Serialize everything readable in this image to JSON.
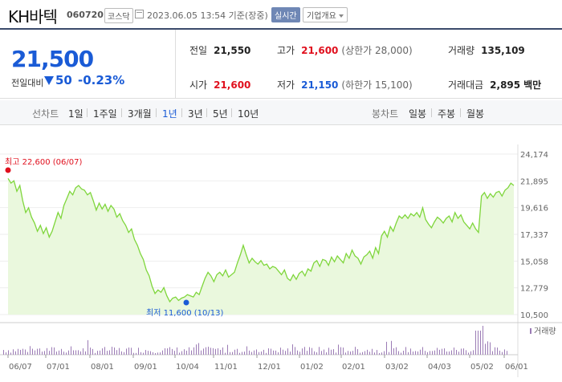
{
  "header": {
    "name": "KH바텍",
    "code": "060720",
    "market": "코스닥",
    "datetime": "2023.06.05 13:54 기준(장중)",
    "realtime": "실시간",
    "company_info": "기업개요"
  },
  "price": {
    "current": "21,500",
    "diff_label": "전일대비",
    "diff": "50",
    "diff_pct": "-0.23%"
  },
  "stats": {
    "prev_label": "전일",
    "prev": "21,550",
    "high_label": "고가",
    "high": "21,600",
    "upper_limit": "(상한가 28,000)",
    "volume_label": "거래량",
    "volume": "135,109",
    "open_label": "시가",
    "open": "21,600",
    "low_label": "저가",
    "low": "21,150",
    "lower_limit": "(하한가 15,100)",
    "amount_label": "거래대금",
    "amount": "2,895",
    "amount_unit": "백만"
  },
  "periodbar": {
    "line_label": "선차트",
    "periods": [
      "1일",
      "1주일",
      "3개월",
      "1년",
      "3년",
      "5년",
      "10년"
    ],
    "active": "1년",
    "candle_label": "봉차트",
    "candles": [
      "일봉",
      "주봉",
      "월봉"
    ]
  },
  "colors": {
    "up": "#e0101e",
    "down": "#1a5bd6",
    "line": "#7fd63c",
    "fill": "#eaf8dd",
    "volume": "#9b7bb5"
  },
  "chart_data": {
    "type": "area",
    "y_ticks": [
      "24,174",
      "21,895",
      "19,616",
      "17,337",
      "15,058",
      "12,779",
      "10,500"
    ],
    "ylim": [
      10500,
      24174
    ],
    "x_ticks": [
      "06/07",
      "07/01",
      "08/01",
      "09/01",
      "10/04",
      "11/01",
      "12/01",
      "01/02",
      "02/01",
      "03/02",
      "04/03",
      "05/02",
      "06/01"
    ],
    "high_annotation": "최고 22,600 (06/07)",
    "low_annotation": "최저 11,600 (10/13)",
    "volume_label": "거래량",
    "values": [
      22100,
      21700,
      21900,
      21000,
      21500,
      20200,
      19200,
      19600,
      18800,
      18300,
      17600,
      18100,
      17400,
      17900,
      17100,
      17600,
      18400,
      19200,
      18700,
      19800,
      20400,
      21000,
      20700,
      21300,
      21500,
      21200,
      21100,
      20700,
      20900,
      20200,
      19400,
      20000,
      19500,
      19900,
      19300,
      19800,
      19500,
      18800,
      19100,
      18500,
      18100,
      17500,
      17800,
      16900,
      16400,
      15700,
      15200,
      14300,
      13800,
      12900,
      12300,
      12600,
      12400,
      12800,
      12100,
      11600,
      11900,
      12000,
      11700,
      11900,
      12000,
      12200,
      12100,
      12000,
      12400,
      12200,
      12900,
      13600,
      14100,
      13800,
      13300,
      13900,
      14100,
      13800,
      14300,
      13700,
      13900,
      14100,
      14900,
      15600,
      16400,
      15600,
      14900,
      15300,
      15000,
      14800,
      15100,
      14700,
      14800,
      14400,
      14600,
      14500,
      14200,
      13900,
      14300,
      13600,
      13400,
      13900,
      13500,
      14000,
      14200,
      13800,
      14400,
      14200,
      14900,
      15100,
      14600,
      15200,
      15100,
      14700,
      15400,
      15000,
      15500,
      15200,
      14900,
      15700,
      15300,
      16000,
      15500,
      15300,
      14800,
      15400,
      15600,
      15900,
      15300,
      16200,
      15700,
      17200,
      17600,
      17100,
      18000,
      17600,
      18300,
      18900,
      18700,
      19000,
      18700,
      19100,
      18900,
      19200,
      18800,
      19600,
      18600,
      18200,
      17900,
      18400,
      18800,
      18600,
      18300,
      18700,
      18900,
      18400,
      19200,
      18700,
      19000,
      18400,
      18100,
      17800,
      18300,
      17800,
      17500,
      20600,
      20900,
      20400,
      20800,
      20500,
      20900,
      21000,
      20600,
      21100,
      21300,
      21700,
      21500
    ]
  }
}
